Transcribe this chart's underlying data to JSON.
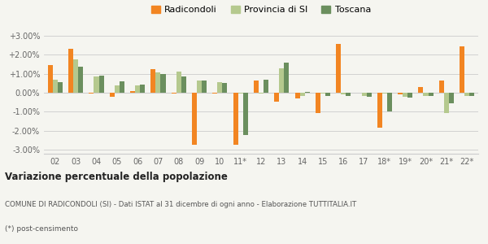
{
  "years": [
    "02",
    "03",
    "04",
    "05",
    "06",
    "07",
    "08",
    "09",
    "10",
    "11*",
    "12",
    "13",
    "14",
    "15",
    "16",
    "17",
    "18*",
    "19*",
    "20*",
    "21*",
    "22*"
  ],
  "radicondoli": [
    1.45,
    2.3,
    -0.05,
    -0.2,
    0.1,
    1.25,
    -0.05,
    -2.75,
    -0.05,
    -2.75,
    0.65,
    -0.45,
    -0.3,
    -1.05,
    2.55,
    0.0,
    -1.85,
    -0.1,
    0.3,
    0.65,
    2.45
  ],
  "provincia_si": [
    0.7,
    1.75,
    0.85,
    0.4,
    0.4,
    1.05,
    1.1,
    0.65,
    0.55,
    -0.05,
    -0.05,
    1.3,
    -0.15,
    -0.05,
    -0.1,
    -0.15,
    -0.05,
    -0.2,
    -0.15,
    -1.05,
    -0.15
  ],
  "toscana": [
    0.55,
    1.35,
    0.9,
    0.6,
    0.42,
    1.0,
    0.85,
    0.65,
    0.52,
    -2.2,
    0.68,
    1.6,
    0.05,
    -0.15,
    -0.15,
    -0.2,
    -0.98,
    -0.25,
    -0.18,
    -0.55,
    -0.18
  ],
  "color_radicondoli": "#f28522",
  "color_provincia": "#b5c98e",
  "color_toscana": "#6b8f5e",
  "background_color": "#f5f5f0",
  "ylim": [
    -3.2,
    3.2
  ],
  "yticks": [
    -3.0,
    -2.0,
    -1.0,
    0.0,
    1.0,
    2.0,
    3.0
  ],
  "ytick_labels": [
    "-3.00%",
    "-2.00%",
    "-1.00%",
    "0.00%",
    "+1.00%",
    "+2.00%",
    "+3.00%"
  ],
  "title_bold": "Variazione percentuale della popolazione",
  "subtitle1": "COMUNE DI RADICONDOLI (SI) - Dati ISTAT al 31 dicembre di ogni anno - Elaborazione TUTTITALIA.IT",
  "subtitle2": "(*) post-censimento",
  "legend_labels": [
    "Radicondoli",
    "Provincia di SI",
    "Toscana"
  ]
}
